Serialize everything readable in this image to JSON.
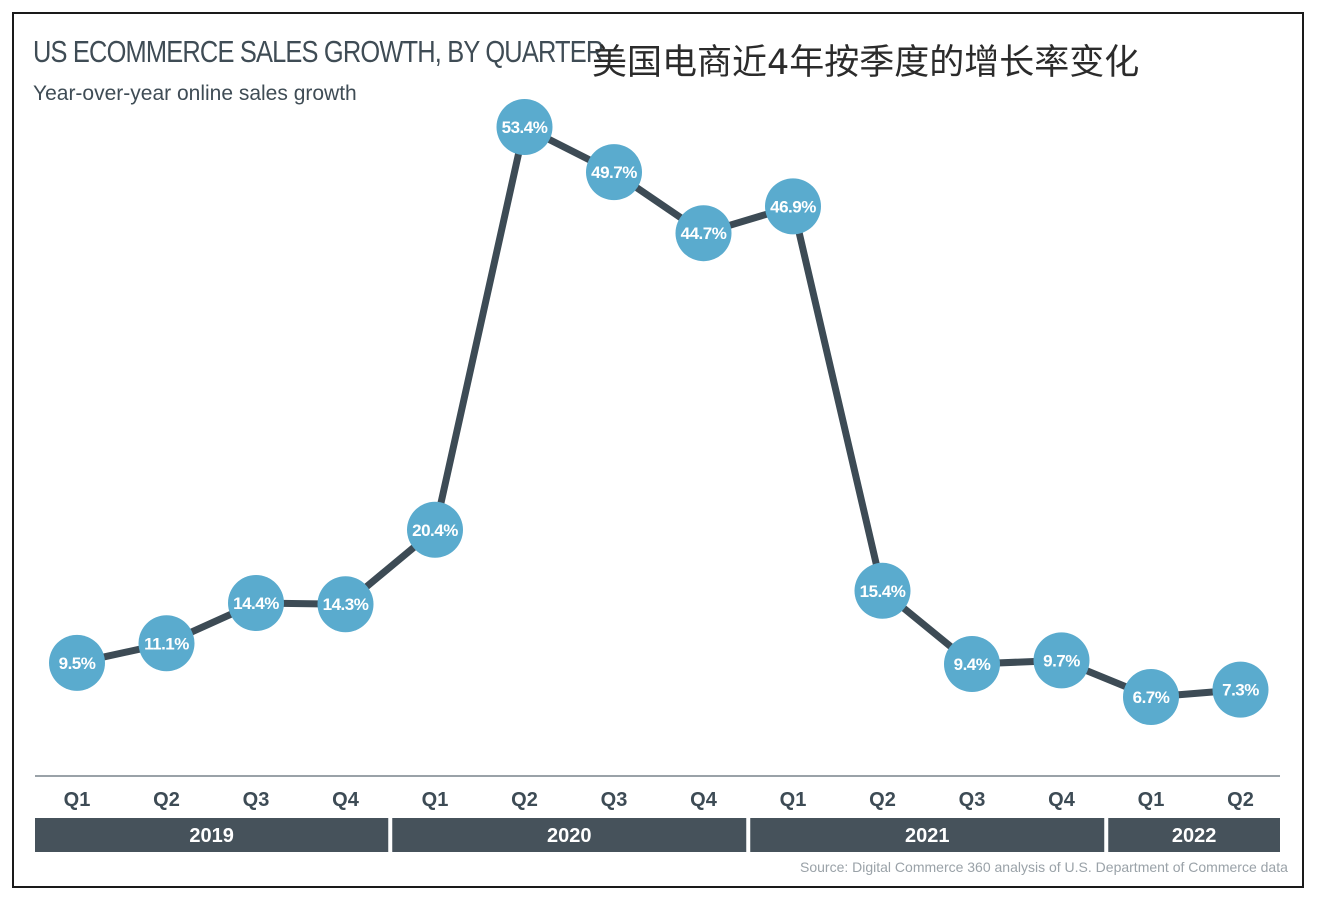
{
  "header": {
    "title": "US ECOMMERCE SALES GROWTH, BY QUARTER",
    "subtitle": "Year-over-year online sales growth",
    "cn_title": "美国电商近4年按季度的增长率变化"
  },
  "footer": {
    "source": "Source: Digital Commerce 360 analysis of U.S. Department of Commerce data"
  },
  "colors": {
    "line": "#3d4b55",
    "marker": "#5aabce",
    "marker_text": "#ffffff",
    "axis_text": "#3d4b55",
    "year_band": "#46525b",
    "year_text": "#ffffff"
  },
  "chart_data": {
    "type": "line",
    "title": "US ECOMMERCE SALES GROWTH, BY QUARTER",
    "subtitle": "Year-over-year online sales growth",
    "x": [
      "Q1 2019",
      "Q2 2019",
      "Q3 2019",
      "Q4 2019",
      "Q1 2020",
      "Q2 2020",
      "Q3 2020",
      "Q4 2020",
      "Q1 2021",
      "Q2 2021",
      "Q3 2021",
      "Q4 2021",
      "Q1 2022",
      "Q2 2022"
    ],
    "quarter_labels": [
      "Q1",
      "Q2",
      "Q3",
      "Q4",
      "Q1",
      "Q2",
      "Q3",
      "Q4",
      "Q1",
      "Q2",
      "Q3",
      "Q4",
      "Q1",
      "Q2"
    ],
    "years": [
      {
        "label": "2019",
        "quarters": 4
      },
      {
        "label": "2020",
        "quarters": 4
      },
      {
        "label": "2021",
        "quarters": 4
      },
      {
        "label": "2022",
        "quarters": 2
      }
    ],
    "values": [
      9.5,
      11.1,
      14.4,
      14.3,
      20.4,
      53.4,
      49.7,
      44.7,
      46.9,
      15.4,
      9.4,
      9.7,
      6.7,
      7.3
    ],
    "data_labels": [
      "9.5%",
      "11.1%",
      "14.4%",
      "14.3%",
      "20.4%",
      "53.4%",
      "49.7%",
      "44.7%",
      "46.9%",
      "15.4%",
      "9.4%",
      "9.7%",
      "6.7%",
      "7.3%"
    ],
    "unit": "%",
    "grid": false,
    "legend": "none"
  }
}
